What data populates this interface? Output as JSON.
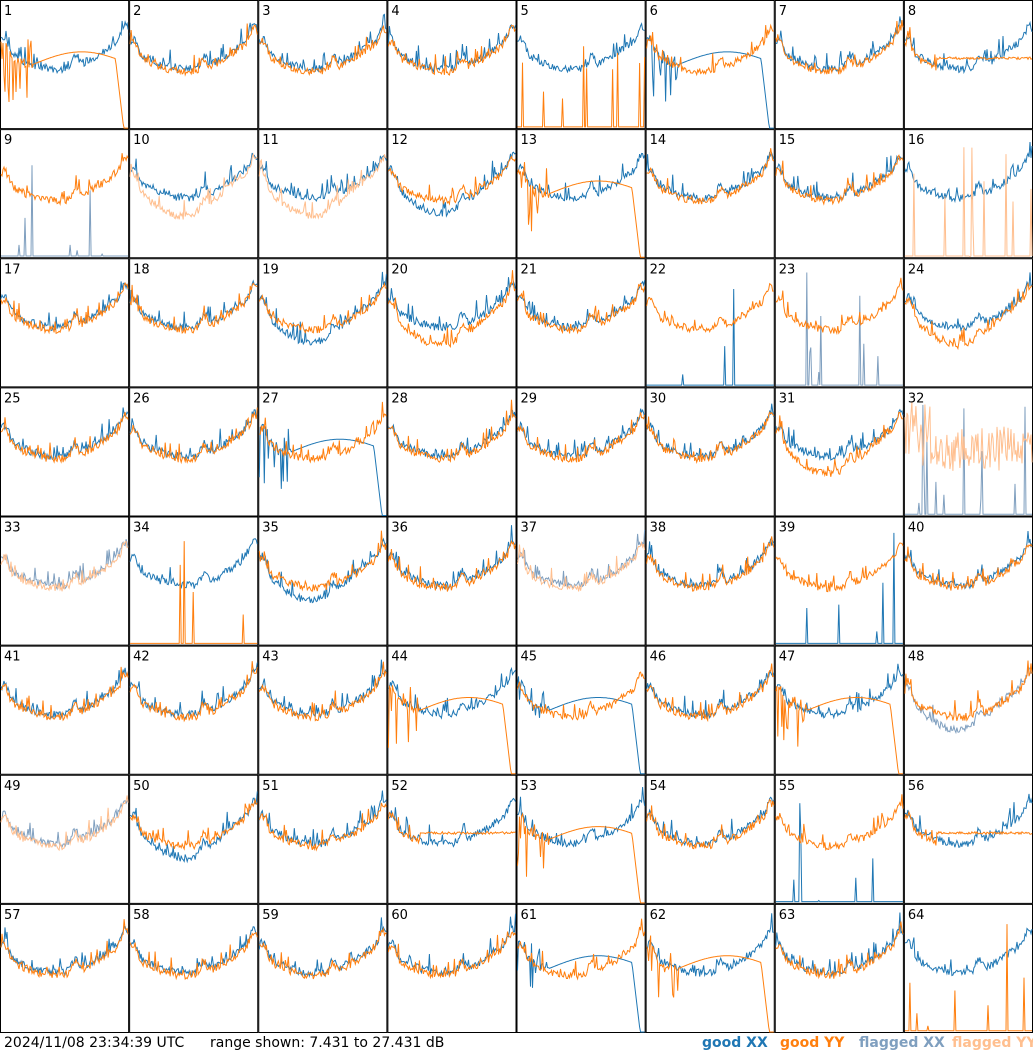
{
  "footer": {
    "timestamp": "2024/11/08 23:34:39 UTC",
    "range_text": "range shown: 7.431 to 27.431 dB"
  },
  "colors": {
    "good_xx": "#1f77b4",
    "good_yy": "#ff7f0e",
    "flagged_xx": "#7f9fbf",
    "flagged_yy": "#ffbf8f"
  },
  "chart_data": {
    "type": "line",
    "title": "",
    "xlabel": "",
    "ylabel": "",
    "ylim": [
      7.431,
      27.431
    ],
    "grid_rows": 8,
    "grid_cols": 8,
    "legend": [
      {
        "key": "good_xx",
        "label": "good XX"
      },
      {
        "key": "good_yy",
        "label": "good YY"
      },
      {
        "key": "flagged_xx",
        "label": "flagged XX"
      },
      {
        "key": "flagged_yy",
        "label": "flagged YY"
      }
    ],
    "panels": [
      {
        "label": "1",
        "xx": "good",
        "yy": "good",
        "yy_shape": "dropout"
      },
      {
        "label": "2",
        "xx": "good",
        "yy": "good"
      },
      {
        "label": "3",
        "xx": "good",
        "yy": "good"
      },
      {
        "label": "4",
        "xx": "good",
        "yy": "good"
      },
      {
        "label": "5",
        "xx": "good",
        "yy": "good",
        "yy_shape": "dead"
      },
      {
        "label": "6",
        "xx": "good",
        "yy": "good",
        "xx_shape": "dropout"
      },
      {
        "label": "7",
        "xx": "good",
        "yy": "good"
      },
      {
        "label": "8",
        "xx": "good",
        "yy": "good",
        "yy_shape": "flat"
      },
      {
        "label": "9",
        "xx": "flagged",
        "yy": "good",
        "xx_shape": "dead"
      },
      {
        "label": "10",
        "xx": "good",
        "yy": "flagged",
        "yy_shape": "low"
      },
      {
        "label": "11",
        "xx": "good",
        "yy": "flagged",
        "yy_shape": "low"
      },
      {
        "label": "12",
        "xx": "good",
        "yy": "good",
        "xx_shape": "low"
      },
      {
        "label": "13",
        "xx": "good",
        "yy": "good",
        "yy_shape": "dropout"
      },
      {
        "label": "14",
        "xx": "good",
        "yy": "good"
      },
      {
        "label": "15",
        "xx": "good",
        "yy": "good"
      },
      {
        "label": "16",
        "xx": "good",
        "yy": "flagged",
        "yy_shape": "dead"
      },
      {
        "label": "17",
        "xx": "good",
        "yy": "good"
      },
      {
        "label": "18",
        "xx": "good",
        "yy": "good"
      },
      {
        "label": "19",
        "xx": "good",
        "yy": "good",
        "xx_shape": "low"
      },
      {
        "label": "20",
        "xx": "good",
        "yy": "good",
        "yy_shape": "low"
      },
      {
        "label": "21",
        "xx": "good",
        "yy": "good"
      },
      {
        "label": "22",
        "xx": "good",
        "yy": "good",
        "xx_shape": "dead"
      },
      {
        "label": "23",
        "xx": "flagged",
        "yy": "good",
        "xx_shape": "dead"
      },
      {
        "label": "24",
        "xx": "good",
        "yy": "good",
        "yy_shape": "low"
      },
      {
        "label": "25",
        "xx": "good",
        "yy": "good"
      },
      {
        "label": "26",
        "xx": "good",
        "yy": "good"
      },
      {
        "label": "27",
        "xx": "good",
        "yy": "good",
        "xx_shape": "dropout"
      },
      {
        "label": "28",
        "xx": "good",
        "yy": "good"
      },
      {
        "label": "29",
        "xx": "good",
        "yy": "good"
      },
      {
        "label": "30",
        "xx": "good",
        "yy": "good"
      },
      {
        "label": "31",
        "xx": "good",
        "yy": "good",
        "yy_shape": "low"
      },
      {
        "label": "32",
        "xx": "flagged",
        "yy": "flagged",
        "xx_shape": "dead",
        "yy_shape": "noisy"
      },
      {
        "label": "33",
        "xx": "flagged",
        "yy": "flagged"
      },
      {
        "label": "34",
        "xx": "good",
        "yy": "good",
        "yy_shape": "dead"
      },
      {
        "label": "35",
        "xx": "good",
        "yy": "good",
        "xx_shape": "low"
      },
      {
        "label": "36",
        "xx": "good",
        "yy": "good"
      },
      {
        "label": "37",
        "xx": "flagged",
        "yy": "flagged"
      },
      {
        "label": "38",
        "xx": "good",
        "yy": "good"
      },
      {
        "label": "39",
        "xx": "good",
        "yy": "good",
        "xx_shape": "dead"
      },
      {
        "label": "40",
        "xx": "good",
        "yy": "good"
      },
      {
        "label": "41",
        "xx": "good",
        "yy": "good"
      },
      {
        "label": "42",
        "xx": "good",
        "yy": "good"
      },
      {
        "label": "43",
        "xx": "good",
        "yy": "good"
      },
      {
        "label": "44",
        "xx": "good",
        "yy": "good",
        "yy_shape": "dropout"
      },
      {
        "label": "45",
        "xx": "good",
        "yy": "good",
        "xx_shape": "dropout"
      },
      {
        "label": "46",
        "xx": "good",
        "yy": "good"
      },
      {
        "label": "47",
        "xx": "good",
        "yy": "good",
        "yy_shape": "dropout"
      },
      {
        "label": "48",
        "xx": "flagged",
        "yy": "good",
        "xx_shape": "low"
      },
      {
        "label": "49",
        "xx": "flagged",
        "yy": "flagged"
      },
      {
        "label": "50",
        "xx": "good",
        "yy": "good",
        "xx_shape": "low"
      },
      {
        "label": "51",
        "xx": "good",
        "yy": "good"
      },
      {
        "label": "52",
        "xx": "good",
        "yy": "good",
        "yy_shape": "flat"
      },
      {
        "label": "53",
        "xx": "good",
        "yy": "good",
        "yy_shape": "dropout"
      },
      {
        "label": "54",
        "xx": "good",
        "yy": "good"
      },
      {
        "label": "55",
        "xx": "good",
        "yy": "good",
        "xx_shape": "dead"
      },
      {
        "label": "56",
        "xx": "good",
        "yy": "good",
        "yy_shape": "flat"
      },
      {
        "label": "57",
        "xx": "good",
        "yy": "good"
      },
      {
        "label": "58",
        "xx": "good",
        "yy": "good"
      },
      {
        "label": "59",
        "xx": "good",
        "yy": "good"
      },
      {
        "label": "60",
        "xx": "good",
        "yy": "good"
      },
      {
        "label": "61",
        "xx": "good",
        "yy": "good",
        "xx_shape": "dropout"
      },
      {
        "label": "62",
        "xx": "good",
        "yy": "good",
        "yy_shape": "dropout"
      },
      {
        "label": "63",
        "xx": "good",
        "yy": "good"
      },
      {
        "label": "64",
        "xx": "good",
        "yy": "good",
        "yy_shape": "dead"
      }
    ]
  }
}
